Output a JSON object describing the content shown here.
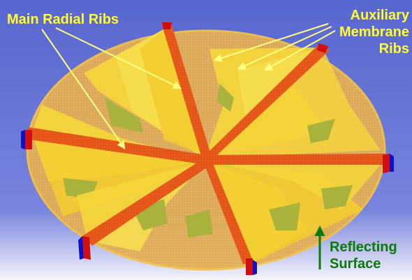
{
  "labels": {
    "main_ribs": "Main Radial Ribs",
    "aux_ribs": [
      "Auxiliary",
      "Membrane",
      "Ribs"
    ],
    "reflecting_surface": [
      "Reflecting",
      "Surface"
    ]
  },
  "colors": {
    "background_top": "#5a6ad2",
    "background_bottom": "#f6f6fb",
    "surface_fill": "#e9b35a",
    "surface_edge": "#f2c24a",
    "main_rib": "#e8561b",
    "aux_rib": "#f5d63b",
    "aux_rib_shadow": "#a9b23a",
    "callout_text": "#ffff30",
    "reflecting_text": "#0a7a0a",
    "arrow_yellow": "#ffff80",
    "arrow_green": "#0a7a0a",
    "hub_red": "#d01010",
    "hub_blue": "#1010c8"
  }
}
